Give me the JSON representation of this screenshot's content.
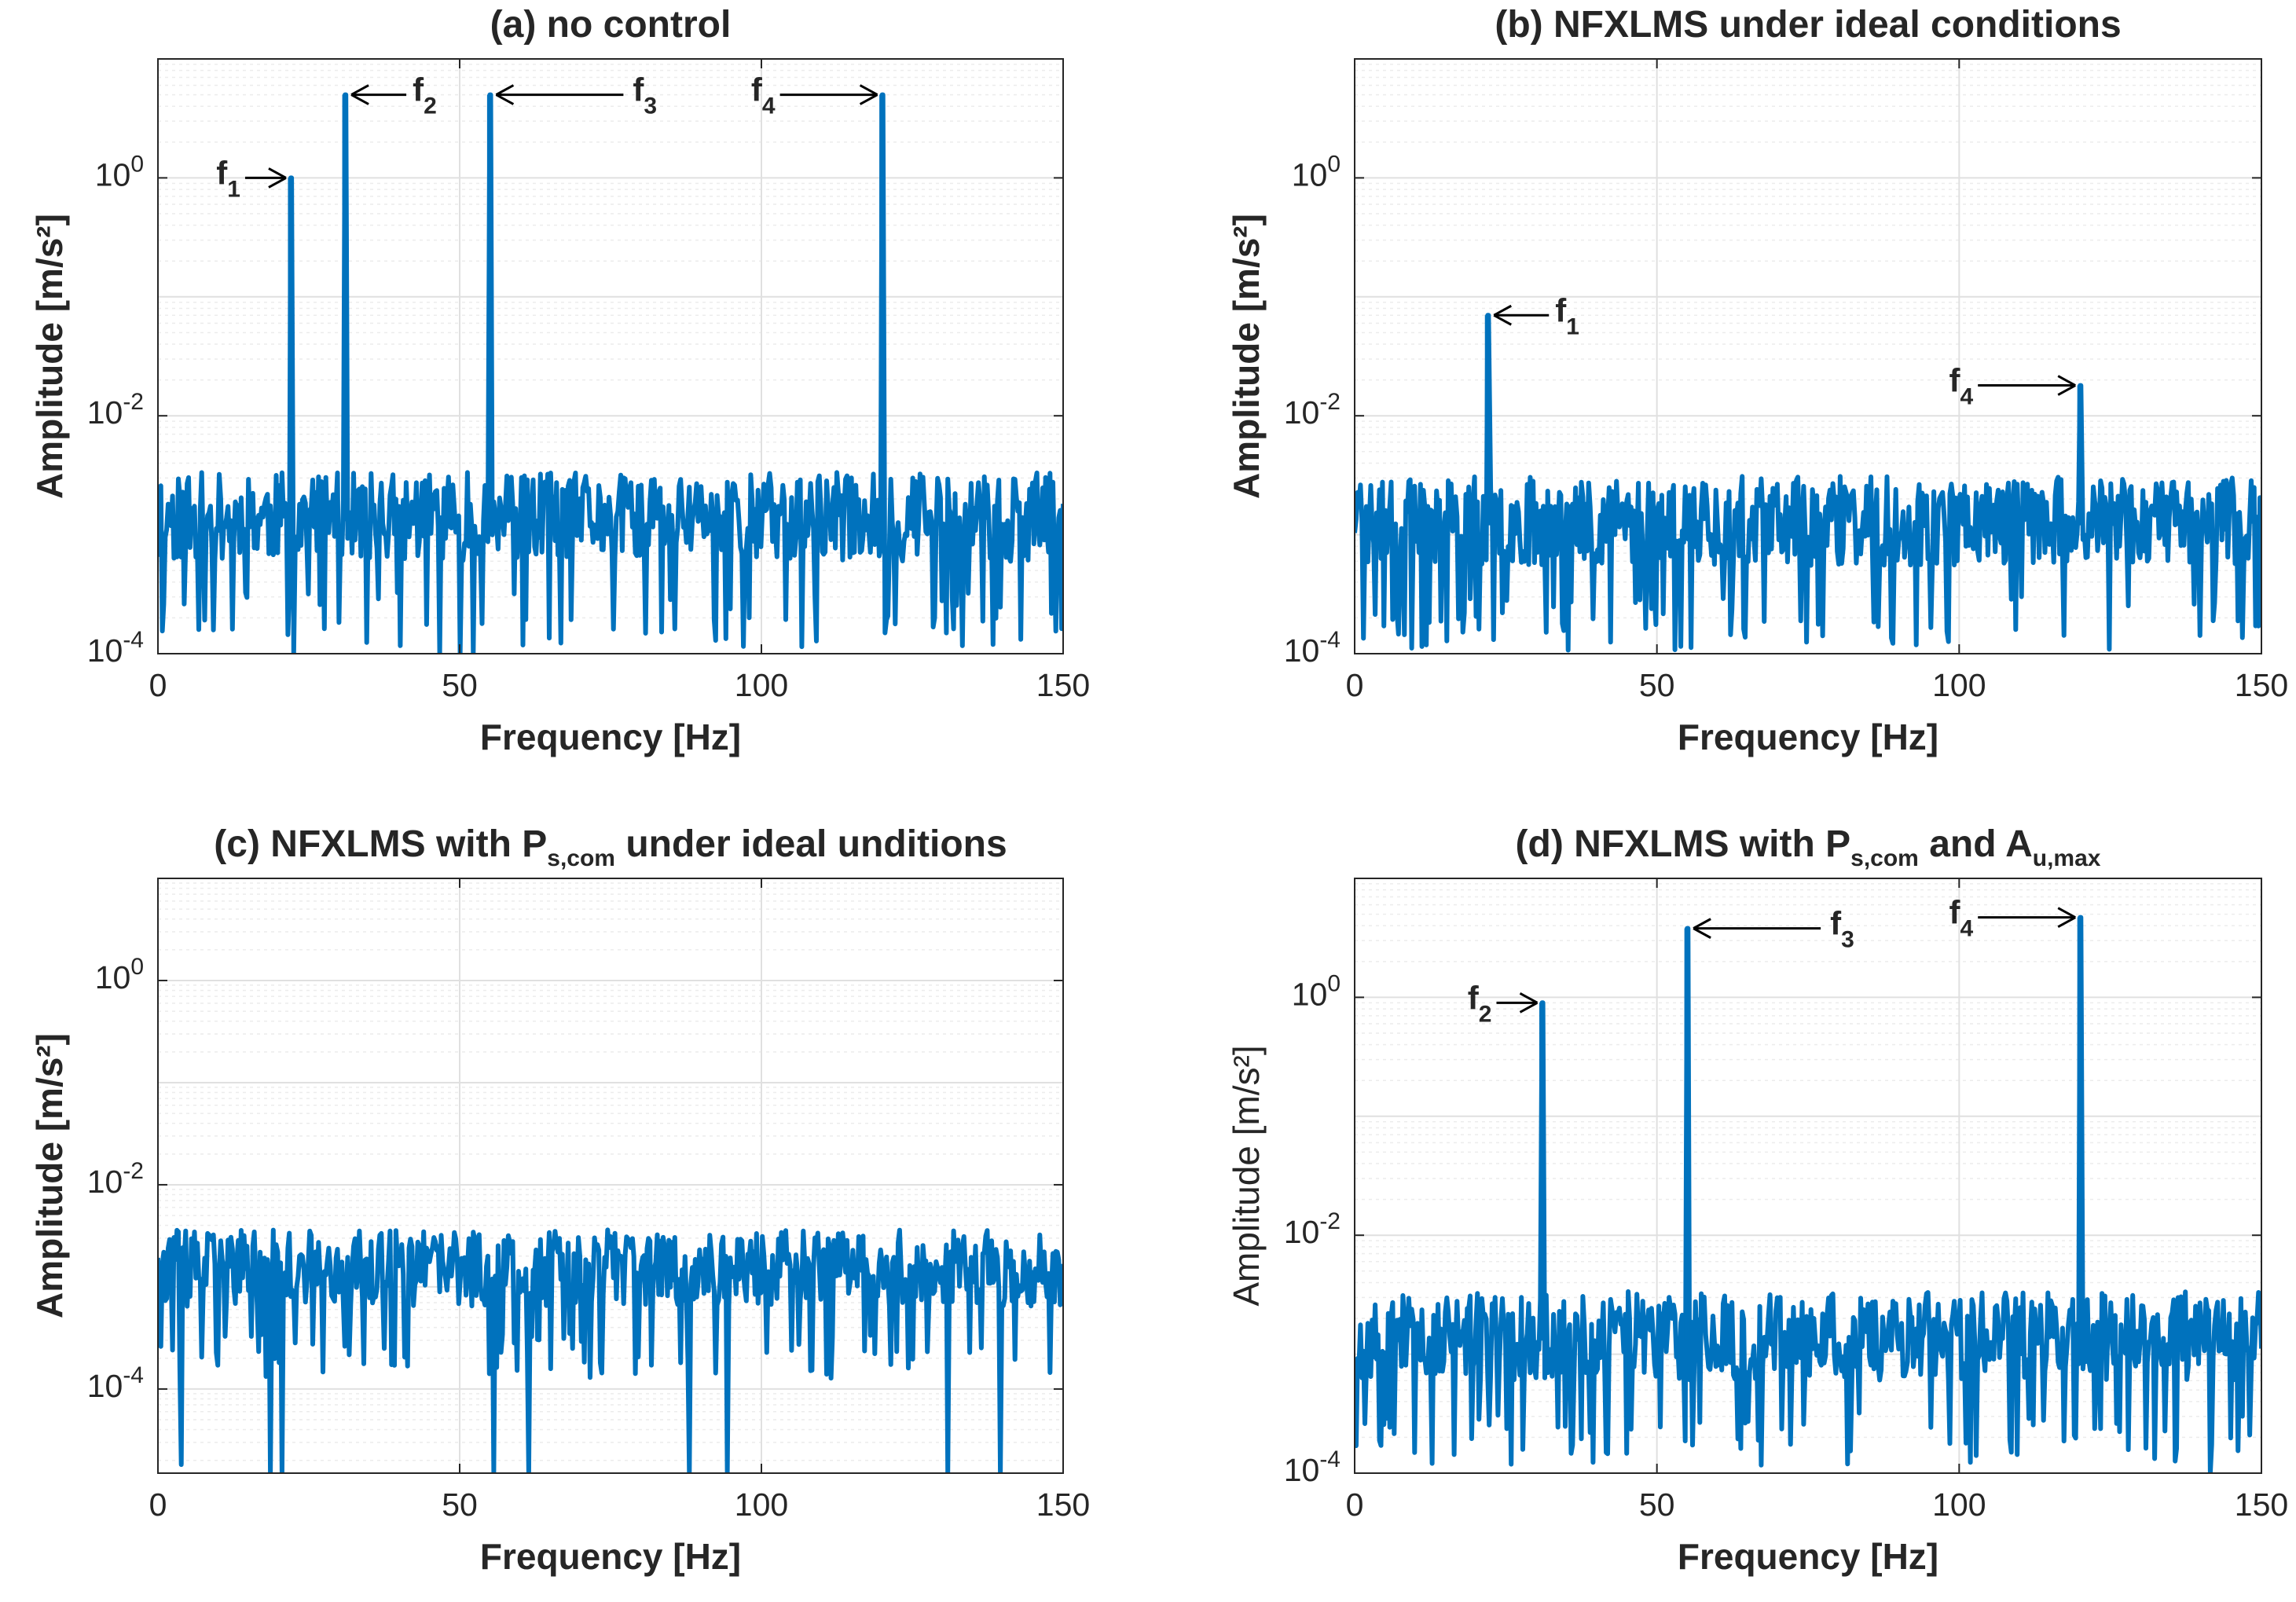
{
  "colors": {
    "line": "#0072BD",
    "grid": "#e0e0e0",
    "axis": "#262626",
    "arrow": "#000000"
  },
  "chart_data": [
    {
      "type": "line",
      "id": "a",
      "title": "(a) no control",
      "xlabel": "Frequency [Hz]",
      "ylabel": "Amplitude [m/s²]",
      "ylabel_bold": true,
      "xlim": [
        0,
        150
      ],
      "ylim": [
        0.0001,
        10
      ],
      "yscale": "log",
      "grid": true,
      "xticks": [
        "0",
        "50",
        "100",
        "150"
      ],
      "yticks": [
        {
          "value": 1,
          "base": "10",
          "exp": "0"
        },
        {
          "value": 0.01,
          "base": "10",
          "exp": "-2"
        },
        {
          "value": 0.0001,
          "base": "10",
          "exp": "-4"
        }
      ],
      "noise_level": 0.0013,
      "noise_low_extreme": 0.0001,
      "seed": 11,
      "peaks": [
        {
          "freq": 22,
          "amp": 1.0
        },
        {
          "freq": 31,
          "amp": 5.0
        },
        {
          "freq": 55,
          "amp": 5.0
        },
        {
          "freq": 120,
          "amp": 5.0
        }
      ],
      "annotations": [
        {
          "label": "f",
          "sub": "1",
          "freq": 22,
          "amp": 1.0,
          "side": "left"
        },
        {
          "label": "f",
          "sub": "2",
          "freq": 31,
          "amp": 5.0,
          "side": "right"
        },
        {
          "label": "f",
          "sub": "3",
          "freq": 55,
          "amp": 5.0,
          "side": "right"
        },
        {
          "label": "f",
          "sub": "4",
          "freq": 120,
          "amp": 5.0,
          "side": "left"
        }
      ]
    },
    {
      "type": "line",
      "id": "b",
      "title": "(b) NFXLMS under ideal conditions",
      "xlabel": "Frequency [Hz]",
      "ylabel": "Amplitude [m/s²]",
      "ylabel_bold": true,
      "xlim": [
        0,
        150
      ],
      "ylim": [
        0.0001,
        10
      ],
      "yscale": "log",
      "grid": true,
      "xticks": [
        "0",
        "50",
        "100",
        "150"
      ],
      "yticks": [
        {
          "value": 1,
          "base": "10",
          "exp": "0"
        },
        {
          "value": 0.01,
          "base": "10",
          "exp": "-2"
        },
        {
          "value": 0.0001,
          "base": "10",
          "exp": "-4"
        }
      ],
      "noise_level": 0.0012,
      "noise_low_extreme": 0.0001,
      "seed": 23,
      "peaks": [
        {
          "freq": 22,
          "amp": 0.07
        },
        {
          "freq": 120,
          "amp": 0.018
        }
      ],
      "annotations": [
        {
          "label": "f",
          "sub": "1",
          "freq": 22,
          "amp": 0.07,
          "side": "right"
        },
        {
          "label": "f",
          "sub": "4",
          "freq": 120,
          "amp": 0.018,
          "side": "left"
        }
      ]
    },
    {
      "type": "line",
      "id": "c",
      "title": "(c) NFXLMS with P",
      "title_sub": "s,com",
      "title_rest": " under ideal unditions",
      "xlabel": "Frequency [Hz]",
      "ylabel": "Amplitude [m/s²]",
      "ylabel_bold": true,
      "xlim": [
        0,
        150
      ],
      "ylim": [
        1.5e-05,
        10
      ],
      "yscale": "log",
      "grid": true,
      "xticks": [
        "0",
        "50",
        "100",
        "150"
      ],
      "yticks": [
        {
          "value": 1,
          "base": "10",
          "exp": "0"
        },
        {
          "value": 0.01,
          "base": "10",
          "exp": "-2"
        },
        {
          "value": 0.0001,
          "base": "10",
          "exp": "-4"
        }
      ],
      "noise_level": 0.0014,
      "noise_low_extreme": 1e-05,
      "seed": 37,
      "peaks": [],
      "annotations": []
    },
    {
      "type": "line",
      "id": "d",
      "title": "(d) NFXLMS with P",
      "title_sub": "s,com",
      "title_mid": " and A",
      "title_sub2": "u,max",
      "xlabel": "Frequency [Hz]",
      "ylabel": "Amplitude [m/s²]",
      "ylabel_bold": false,
      "xlim": [
        0,
        150
      ],
      "ylim": [
        0.0001,
        10
      ],
      "yscale": "log",
      "grid": true,
      "xticks": [
        "0",
        "50",
        "100",
        "150"
      ],
      "yticks": [
        {
          "value": 1,
          "base": "10",
          "exp": "0"
        },
        {
          "value": 0.01,
          "base": "10",
          "exp": "-2"
        },
        {
          "value": 0.0001,
          "base": "10",
          "exp": "-4"
        }
      ],
      "noise_level": 0.0013,
      "noise_low_extreme": 0.0001,
      "seed": 53,
      "peaks": [
        {
          "freq": 31,
          "amp": 0.9
        },
        {
          "freq": 55,
          "amp": 3.8
        },
        {
          "freq": 120,
          "amp": 4.7
        }
      ],
      "annotations": [
        {
          "label": "f",
          "sub": "2",
          "freq": 31,
          "amp": 0.9,
          "side": "left"
        },
        {
          "label": "f",
          "sub": "3",
          "freq": 55,
          "amp": 3.8,
          "side": "right"
        },
        {
          "label": "f",
          "sub": "4",
          "freq": 120,
          "amp": 4.7,
          "side": "left"
        }
      ]
    }
  ]
}
